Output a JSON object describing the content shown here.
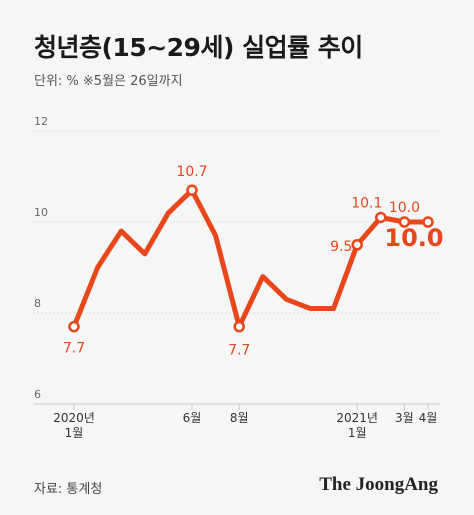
{
  "header": {
    "title": "청년층(15~29세) 실업률 추이",
    "unit_note": "단위: %  ※5월은 26일까지"
  },
  "footer": {
    "source": "자료: 통계청",
    "brand": "The JoongAng"
  },
  "colors": {
    "line": "#e8461b",
    "background": "#f6f6f6",
    "grid": "#c9c9c9",
    "axis_text": "#666666"
  },
  "chart_data": {
    "type": "line",
    "title": "청년층(15~29세) 실업률 추이",
    "ylim": [
      6,
      12
    ],
    "yticks": [
      6,
      8,
      10,
      12
    ],
    "grid": true,
    "x": [
      "2020-01",
      "2020-02",
      "2020-03",
      "2020-04",
      "2020-05",
      "2020-06",
      "2020-07",
      "2020-08",
      "2020-09",
      "2020-10",
      "2020-11",
      "2020-12",
      "2021-01",
      "2021-02",
      "2021-03",
      "2021-04"
    ],
    "values": [
      7.7,
      9.0,
      9.8,
      9.3,
      10.2,
      10.7,
      9.7,
      7.7,
      8.8,
      8.3,
      8.1,
      8.1,
      9.5,
      10.1,
      10.0,
      10.0
    ],
    "point_labels": [
      {
        "index": 0,
        "text": "7.7"
      },
      {
        "index": 5,
        "text": "10.7"
      },
      {
        "index": 7,
        "text": "7.7"
      },
      {
        "index": 12,
        "text": "9.5"
      },
      {
        "index": 13,
        "text": "10.1"
      },
      {
        "index": 14,
        "text": "10.0"
      },
      {
        "index": 15,
        "text": "10.0",
        "emphasis": true
      }
    ],
    "x_tick_labels": [
      {
        "index": 0,
        "line1": "2020년",
        "line2": "1월"
      },
      {
        "index": 5,
        "line1": "6월",
        "line2": ""
      },
      {
        "index": 7,
        "line1": "8월",
        "line2": ""
      },
      {
        "index": 12,
        "line1": "2021년",
        "line2": "1월"
      },
      {
        "index": 14,
        "line1": "3월",
        "line2": ""
      },
      {
        "index": 15,
        "line1": "4월",
        "line2": ""
      }
    ]
  }
}
